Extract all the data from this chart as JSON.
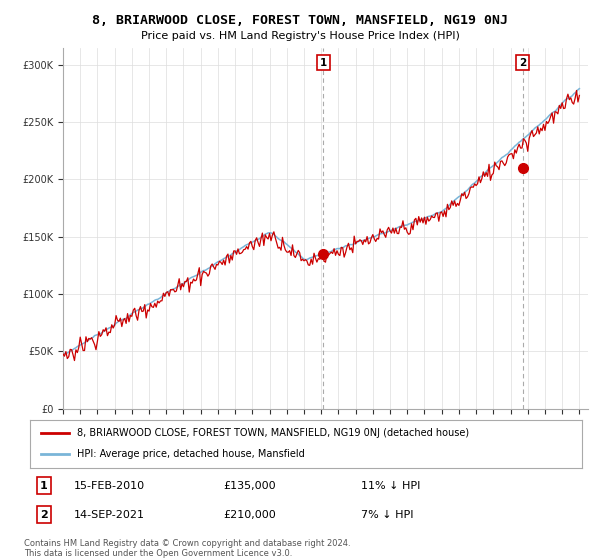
{
  "title": "8, BRIARWOOD CLOSE, FOREST TOWN, MANSFIELD, NG19 0NJ",
  "subtitle": "Price paid vs. HM Land Registry's House Price Index (HPI)",
  "ylabel_ticks": [
    "£0",
    "£50K",
    "£100K",
    "£150K",
    "£200K",
    "£250K",
    "£300K"
  ],
  "ytick_values": [
    0,
    50000,
    100000,
    150000,
    200000,
    250000,
    300000
  ],
  "ylim": [
    0,
    315000
  ],
  "hpi_color": "#7ab5d8",
  "price_color": "#cc0000",
  "marker1_year": 2010.125,
  "marker2_year": 2021.708,
  "marker1_price": 135000,
  "marker2_price": 210000,
  "legend_label1": "8, BRIARWOOD CLOSE, FOREST TOWN, MANSFIELD, NG19 0NJ (detached house)",
  "legend_label2": "HPI: Average price, detached house, Mansfield",
  "ann1_date": "15-FEB-2010",
  "ann1_price": "£135,000",
  "ann1_hpi": "11% ↓ HPI",
  "ann2_date": "14-SEP-2021",
  "ann2_price": "£210,000",
  "ann2_hpi": "7% ↓ HPI",
  "footnote": "Contains HM Land Registry data © Crown copyright and database right 2024.\nThis data is licensed under the Open Government Licence v3.0.",
  "background_color": "#ffffff",
  "grid_color": "#dddddd",
  "xmin": 1995,
  "xmax": 2025.5
}
